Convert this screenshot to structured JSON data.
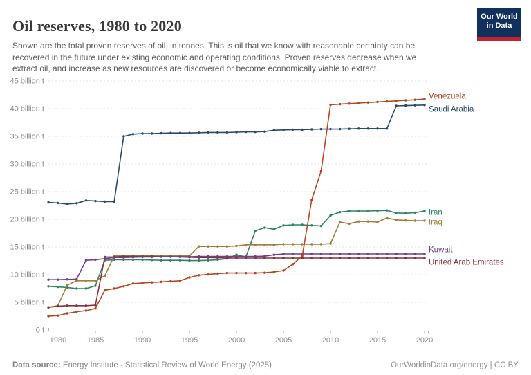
{
  "header": {
    "title": "Oil reserves, 1980 to 2020",
    "subtitle": "Shown are the total proven reserves of oil, in tonnes. This is oil that we know with reasonable certainty can be\nrecovered in the future under existing economic and operating conditions. Proven reserves decrease when we\nextract oil, and increase as new resources are discovered or become economically viable to extract.",
    "logo": {
      "line1": "Our World",
      "line2": "in Data",
      "bg_color": "#12305e",
      "accent_color": "#c0232c"
    }
  },
  "chart_data": {
    "type": "line",
    "title": "Oil reserves, 1980 to 2020",
    "unit": "billion tonnes",
    "xlabel": "",
    "ylabel": "",
    "xlim": [
      1980,
      2020
    ],
    "ylim": [
      0,
      45
    ],
    "grid": "dashed-horizontal",
    "legend_position": "right-of-line-ends",
    "x": [
      1980,
      1981,
      1982,
      1983,
      1984,
      1985,
      1986,
      1987,
      1988,
      1989,
      1990,
      1991,
      1992,
      1993,
      1994,
      1995,
      1996,
      1997,
      1998,
      1999,
      2000,
      2001,
      2002,
      2003,
      2004,
      2005,
      2006,
      2007,
      2008,
      2009,
      2010,
      2011,
      2012,
      2013,
      2014,
      2015,
      2016,
      2017,
      2018,
      2019,
      2020
    ],
    "y_ticks": [
      {
        "value": 0,
        "label": "0 t"
      },
      {
        "value": 5,
        "label": "5 billion t"
      },
      {
        "value": 10,
        "label": "10 billion t"
      },
      {
        "value": 15,
        "label": "15 billion t"
      },
      {
        "value": 20,
        "label": "20 billion t"
      },
      {
        "value": 25,
        "label": "25 billion t"
      },
      {
        "value": 30,
        "label": "30 billion t"
      },
      {
        "value": 35,
        "label": "35 billion t"
      },
      {
        "value": 40,
        "label": "40 billion t"
      },
      {
        "value": 45,
        "label": "45 billion t"
      }
    ],
    "x_ticks": [
      {
        "value": 1980,
        "label": "1980"
      },
      {
        "value": 1985,
        "label": "1985"
      },
      {
        "value": 1990,
        "label": "1990"
      },
      {
        "value": 1995,
        "label": "1995"
      },
      {
        "value": 2000,
        "label": "2000"
      },
      {
        "value": 2005,
        "label": "2005"
      },
      {
        "value": 2010,
        "label": "2010"
      },
      {
        "value": 2015,
        "label": "2015"
      },
      {
        "value": 2020,
        "label": "2020"
      }
    ],
    "series": [
      {
        "id": "iran",
        "name": "Iran",
        "color": "#2c8465",
        "label_dy": 2,
        "values": [
          7.9,
          7.8,
          7.7,
          7.5,
          7.5,
          8.0,
          12.6,
          12.7,
          12.7,
          12.7,
          12.7,
          12.65,
          12.6,
          12.6,
          12.6,
          12.55,
          12.55,
          12.6,
          12.7,
          12.9,
          13.6,
          13.2,
          17.9,
          18.5,
          18.2,
          18.9,
          19.0,
          19.0,
          18.9,
          18.8,
          20.7,
          21.3,
          21.5,
          21.5,
          21.5,
          21.55,
          21.6,
          21.15,
          21.1,
          21.2,
          21.5
        ]
      },
      {
        "id": "iraq",
        "name": "Iraq",
        "color": "#a67c3b",
        "label_dy": 2,
        "values": [
          4.1,
          4.4,
          8.1,
          8.9,
          8.9,
          8.9,
          9.8,
          13.4,
          13.4,
          13.4,
          13.4,
          13.4,
          13.4,
          13.4,
          13.4,
          13.4,
          15.1,
          15.1,
          15.1,
          15.1,
          15.2,
          15.4,
          15.4,
          15.4,
          15.4,
          15.5,
          15.5,
          15.5,
          15.5,
          15.5,
          15.6,
          19.5,
          19.2,
          19.6,
          19.6,
          19.5,
          20.25,
          19.9,
          19.8,
          19.75,
          19.75
        ]
      },
      {
        "id": "united-arab-emirates",
        "name": "United Arab Emirates",
        "color": "#883039",
        "label_dy": 6,
        "values": [
          4.1,
          4.3,
          4.4,
          4.4,
          4.4,
          4.5,
          13.2,
          13.2,
          13.3,
          13.3,
          13.3,
          13.3,
          13.25,
          13.25,
          13.2,
          13.15,
          13.1,
          13.1,
          13.05,
          13.0,
          13.0,
          13.0,
          13.0,
          13.0,
          13.0,
          13.0,
          13.0,
          13.0,
          13.0,
          13.0,
          13.0,
          13.0,
          13.0,
          13.0,
          13.0,
          13.0,
          13.0,
          13.0,
          13.0,
          13.0,
          13.0
        ]
      },
      {
        "id": "kuwait",
        "name": "Kuwait",
        "color": "#6d3e91",
        "label_dy": -6,
        "values": [
          9.1,
          9.1,
          9.15,
          9.2,
          12.6,
          12.7,
          12.9,
          13.1,
          13.1,
          13.15,
          13.2,
          13.2,
          13.25,
          13.25,
          13.25,
          13.25,
          13.3,
          13.3,
          13.3,
          13.3,
          13.3,
          13.3,
          13.3,
          13.35,
          13.6,
          13.75,
          13.75,
          13.75,
          13.75,
          13.75,
          13.75,
          13.75,
          13.75,
          13.75,
          13.75,
          13.75,
          13.75,
          13.75,
          13.75,
          13.75,
          13.75
        ]
      },
      {
        "id": "saudi-arabia",
        "name": "Saudi Arabia",
        "color": "#2a4a6c",
        "label_dy": 6,
        "values": [
          23.05,
          22.95,
          22.75,
          22.9,
          23.4,
          23.3,
          23.2,
          23.2,
          35.0,
          35.4,
          35.5,
          35.5,
          35.55,
          35.6,
          35.6,
          35.6,
          35.65,
          35.7,
          35.7,
          35.7,
          35.75,
          35.8,
          35.8,
          35.85,
          36.1,
          36.15,
          36.2,
          36.2,
          36.25,
          36.3,
          36.3,
          36.3,
          36.35,
          36.4,
          36.4,
          36.4,
          36.4,
          40.5,
          40.55,
          40.6,
          40.65
        ]
      },
      {
        "id": "venezuela",
        "name": "Venezuela",
        "color": "#b34722",
        "label_dy": -4,
        "values": [
          2.5,
          2.6,
          3.0,
          3.3,
          3.5,
          3.9,
          7.2,
          7.5,
          7.9,
          8.4,
          8.5,
          8.6,
          8.7,
          8.8,
          8.9,
          9.5,
          9.9,
          10.05,
          10.2,
          10.3,
          10.3,
          10.3,
          10.3,
          10.35,
          10.5,
          10.75,
          11.9,
          13.4,
          23.5,
          28.7,
          40.7,
          40.8,
          40.9,
          41.0,
          41.1,
          41.2,
          41.3,
          41.4,
          41.5,
          41.6,
          41.75
        ]
      }
    ]
  },
  "footer": {
    "source_label": "Data source:",
    "source_text": " Energy Institute - Statistical Review of World Energy (2025)",
    "credit": "OurWorldinData.org/energy | CC BY"
  }
}
